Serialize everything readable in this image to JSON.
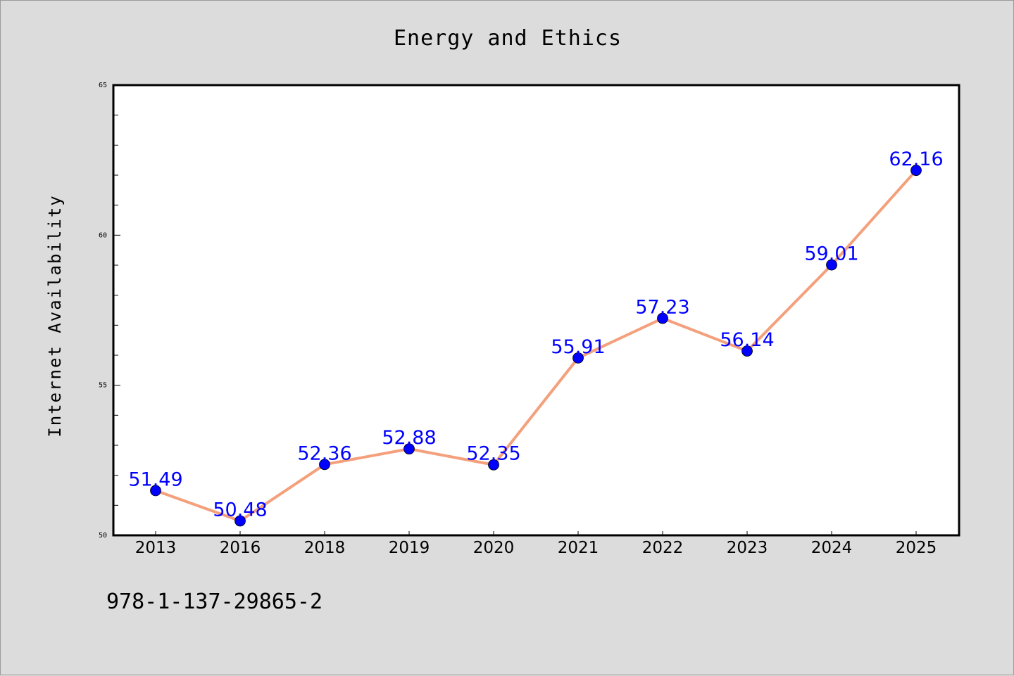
{
  "chart_data": {
    "type": "line",
    "title": "Energy and Ethics",
    "xlabel": "",
    "ylabel": "Internet Availability",
    "categories": [
      "2013",
      "2016",
      "2018",
      "2019",
      "2020",
      "2021",
      "2022",
      "2023",
      "2024",
      "2025"
    ],
    "series": [
      {
        "values": [
          51.49,
          50.48,
          52.36,
          52.88,
          52.35,
          55.91,
          57.23,
          56.14,
          59.01,
          62.16
        ],
        "labels": [
          "51.49",
          "50.48",
          "52.36",
          "52.88",
          "52.35",
          "55.91",
          "57.23",
          "56.14",
          "59.01",
          "62.16"
        ],
        "line_color": "#f4a07c",
        "marker_color": "#0000ff",
        "label_color": "#0000ff"
      }
    ],
    "ylim": [
      50,
      65
    ],
    "yticks": [
      "50",
      "55",
      "60",
      "65"
    ],
    "grid": false,
    "legend": "none"
  },
  "footer": {
    "isbn": "978-1-137-29865-2"
  },
  "colors": {
    "background": "#dcdcdc",
    "plot_area": "#ffffff",
    "axis": "#000000"
  }
}
